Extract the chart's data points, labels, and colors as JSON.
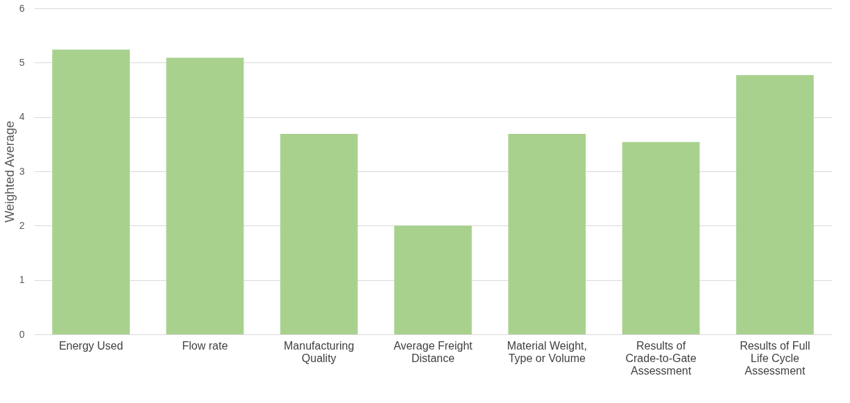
{
  "chart_data": {
    "type": "bar",
    "ylabel": "Weighted Average",
    "categories": [
      "Energy Used",
      "Flow rate",
      "Manufacturing Quality",
      "Average Freight Distance",
      "Material Weight, Type or Volume",
      "Results of Crade-to-Gate Assessment",
      "Results of Full Life Cycle Assessment"
    ],
    "values": [
      5.24,
      5.09,
      3.69,
      2.0,
      3.69,
      3.54,
      4.77
    ],
    "color": "#a9d18e",
    "ylim": [
      0,
      6
    ],
    "yticks": [
      0,
      1,
      2,
      3,
      4,
      5,
      6
    ],
    "grid": "y"
  }
}
